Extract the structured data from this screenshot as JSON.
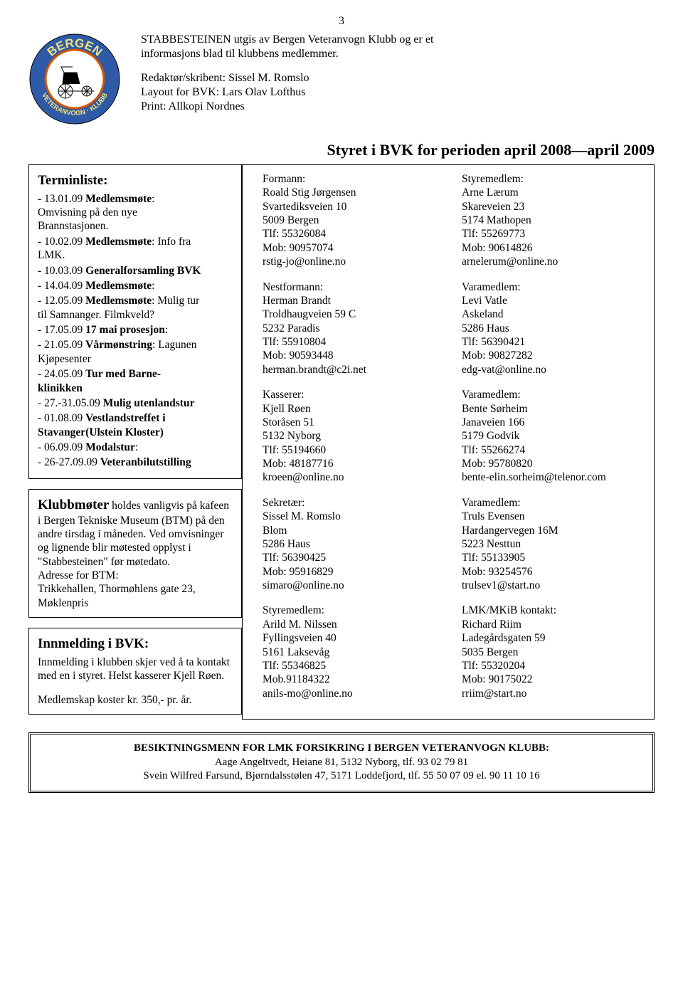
{
  "page_number": "3",
  "intro": {
    "p1_a": "STABBESTEINEN utgis av Bergen Veteranvogn Klubb og er et",
    "p1_b": "informasjons blad til klubbens medlemmer.",
    "p2_a": "Redaktør/skribent: Sissel M. Romslo",
    "p2_b": "Layout for BVK: Lars Olav Lofthus",
    "p2_c": "Print: Allkopi Nordnes"
  },
  "logo": {
    "top_text": "BERGEN",
    "bottom_text": "VETERANVOGN · KLUBB",
    "ring_bg": "#2e5aa8",
    "ring_text": "#f3e27a",
    "inner_bg": "#ffffff",
    "inner_border": "#d35400"
  },
  "board_heading": "Styret i BVK for perioden april 2008—april 2009",
  "terminliste": {
    "heading": "Terminliste:",
    "items": [
      {
        "date": "- 13.01.09 ",
        "bold": "Medlemsmøte",
        "rest": ":\nOmvisning på den nye\nBrannstasjonen."
      },
      {
        "date": "- 10.02.09 ",
        "bold": "Medlemsmøte",
        "rest": ": Info fra\nLMK."
      },
      {
        "date": "- 10.03.09 ",
        "bold": "Generalforsamling BVK",
        "rest": ""
      },
      {
        "date": "- 14.04.09 ",
        "bold": "Medlemsmøte",
        "rest": ":"
      },
      {
        "date": "- 12.05.09 ",
        "bold": "Medlemsmøte",
        "rest": ": Mulig tur\ntil Samnanger. Filmkveld?"
      },
      {
        "date": "- 17.05.09 ",
        "bold": "17 mai prosesjon",
        "rest": ":"
      },
      {
        "date": "- 21.05.09 ",
        "bold": "Vårmønstring",
        "rest": ": Lagunen\nKjøpesenter"
      },
      {
        "date": "- 24.05.09 ",
        "bold": "Tur med Barne-\nklinikken",
        "rest": ""
      },
      {
        "date": "- 27.-31.05.09 ",
        "bold": "Mulig utenlandstur",
        "rest": ""
      },
      {
        "date": "- 01.08.09 ",
        "bold": "Vestlandstreffet i\nStavanger(Ulstein Kloster)",
        "rest": ""
      },
      {
        "date": "- 06.09.09 ",
        "bold": "Modalstur",
        "rest": ":"
      },
      {
        "date": "- 26-27.09.09 ",
        "bold": "Veteranbilutstilling",
        "rest": ""
      }
    ]
  },
  "klubbmoter": {
    "heading": "Klubbmøter",
    "text": " holdes vanligvis på kafeen i Bergen Tekniske Museum (BTM) på den andre tirsdag i måneden. Ved omvisninger og lignende blir møtested opplyst i \"Stabbesteinen\" før møtedato.",
    "addr_lbl": "Adresse for BTM:",
    "addr_l1": "Trikkehallen, Thormøhlens gate 23,",
    "addr_l2": "Møklenpris"
  },
  "innmelding": {
    "heading": "Innmelding i BVK:",
    "text": "Innmelding i klubben skjer ved å ta kontakt med en i styret. Helst kasserer Kjell Røen.",
    "fee": "Medlemskap koster kr. 350,- pr. år."
  },
  "contacts_left": [
    {
      "role": "Formann:",
      "name": "Roald Stig Jørgensen",
      "addr1": "Svartediksveien 10",
      "addr2": "5009 Bergen",
      "tlf": "Tlf: 55326084",
      "mob": "Mob: 90957074",
      "email": "rstig-jo@online.no"
    },
    {
      "role": "Nestformann:",
      "name": "Herman Brandt",
      "addr1": "Troldhaugveien 59 C",
      "addr2": "5232 Paradis",
      "tlf": "Tlf: 55910804",
      "mob": "Mob: 90593448",
      "email": "herman.brandt@c2i.net"
    },
    {
      "role": "Kasserer:",
      "name": "Kjell Røen",
      "addr1": "Storåsen 51",
      "addr2": "5132 Nyborg",
      "tlf": "Tlf: 55194660",
      "mob": "Mob: 48187716",
      "email": "kroeen@online.no"
    },
    {
      "role": "Sekretær:",
      "name": "Sissel M. Romslo",
      "addr1": "Blom",
      "addr2": "5286 Haus",
      "tlf": "Tlf: 56390425",
      "mob": "Mob: 95916829",
      "email": "simaro@online.no"
    },
    {
      "role": "Styremedlem:",
      "name": "Arild M. Nilssen",
      "addr1": "Fyllingsveien 40",
      "addr2": "5161 Laksevåg",
      "tlf": "Tlf: 55346825",
      "mob": "Mob.91184322",
      "email": "anils-mo@online.no"
    }
  ],
  "contacts_right": [
    {
      "role": "Styremedlem:",
      "name": "Arne Lærum",
      "addr1": "Skareveien 23",
      "addr2": "5174 Mathopen",
      "tlf": "Tlf: 55269773",
      "mob": "Mob: 90614826",
      "email": "arnelerum@online.no"
    },
    {
      "role": "Varamedlem:",
      "name": "Levi Vatle",
      "addr1": "Askeland",
      "addr2": "5286 Haus",
      "tlf": "Tlf: 56390421",
      "mob": "Mob: 90827282",
      "email": "edg-vat@online.no"
    },
    {
      "role": "Varamedlem:",
      "name": "Bente Sørheim",
      "addr1": "Janaveien 166",
      "addr2": "5179 Godvik",
      "tlf": "Tlf: 55266274",
      "mob": "Mob: 95780820",
      "email": "bente-elin.sorheim@telenor.com"
    },
    {
      "role": "Varamedlem:",
      "name": "Truls Evensen",
      "addr1": "Hardangervegen 16M",
      "addr2": "5223 Nesttun",
      "tlf": "Tlf: 55133905",
      "mob": "Mob: 93254576",
      "email": "trulsev1@start.no"
    },
    {
      "role": "LMK/MKiB kontakt:",
      "name": "Richard Riim",
      "addr1": "Ladegårdsgaten 59",
      "addr2": "5035 Bergen",
      "tlf": "Tlf: 55320204",
      "mob": "Mob: 90175022",
      "email": "rriim@start.no"
    }
  ],
  "footer": {
    "heading": "BESIKTNINGSMENN FOR LMK FORSIKRING I BERGEN VETERANVOGN KLUBB:",
    "l1": "Aage Angeltvedt, Heiane 81, 5132 Nyborg, tlf. 93 02 79 81",
    "l2": "Svein Wilfred Farsund, Bjørndalsstølen 47, 5171 Loddefjord, tlf. 55 50 07 09 el. 90 11 10 16"
  }
}
